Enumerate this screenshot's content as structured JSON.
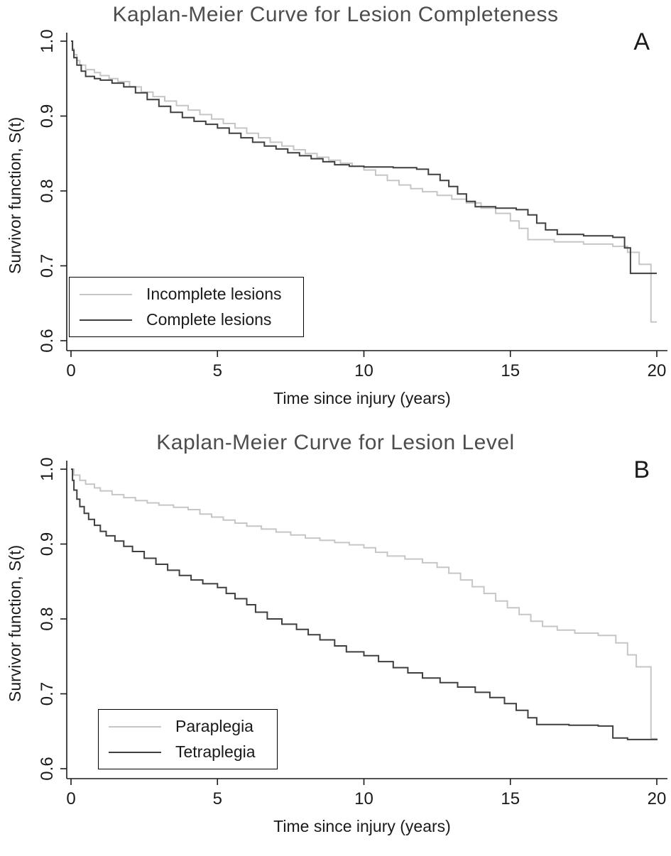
{
  "figure": {
    "background": "#ffffff",
    "title_color": "#4d4d4d",
    "axis_color": "#1a1a1a"
  },
  "chart_data": [
    {
      "type": "line",
      "subtype": "kaplan-meier-step",
      "title": "Kaplan-Meier Curve for Lesion Completeness",
      "panel_label": "A",
      "xlabel": "Time since injury (years)",
      "ylabel": "Survivor function, S(t)",
      "xlim": [
        0,
        20
      ],
      "ylim": [
        0.6,
        1.0
      ],
      "xticks": [
        0,
        5,
        10,
        15,
        20
      ],
      "xtick_labels": [
        "0",
        "5",
        "10",
        "15",
        "20"
      ],
      "yticks": [
        0.6,
        0.7,
        0.8,
        0.9,
        1.0
      ],
      "ytick_labels": [
        "0.6",
        "0.7",
        "0.8",
        "0.9",
        "1.0"
      ],
      "grid": false,
      "legend": {
        "position": "lower-left",
        "border": true
      },
      "axis_color": "#1a1a1a",
      "series": [
        {
          "name": "Incomplete lesions",
          "color": "#c6c6c6",
          "points": [
            [
              0,
              1.0
            ],
            [
              0.05,
              0.99
            ],
            [
              0.1,
              0.982
            ],
            [
              0.2,
              0.974
            ],
            [
              0.3,
              0.968
            ],
            [
              0.5,
              0.962
            ],
            [
              0.8,
              0.958
            ],
            [
              1.0,
              0.954
            ],
            [
              1.3,
              0.95
            ],
            [
              1.6,
              0.946
            ],
            [
              2.0,
              0.939
            ],
            [
              2.4,
              0.932
            ],
            [
              2.8,
              0.926
            ],
            [
              3.2,
              0.92
            ],
            [
              3.6,
              0.914
            ],
            [
              4.0,
              0.908
            ],
            [
              4.4,
              0.902
            ],
            [
              4.8,
              0.896
            ],
            [
              5.2,
              0.89
            ],
            [
              5.6,
              0.884
            ],
            [
              6.0,
              0.877
            ],
            [
              6.4,
              0.871
            ],
            [
              6.8,
              0.865
            ],
            [
              7.2,
              0.86
            ],
            [
              7.6,
              0.855
            ],
            [
              8.0,
              0.85
            ],
            [
              8.4,
              0.845
            ],
            [
              8.8,
              0.841
            ],
            [
              9.2,
              0.837
            ],
            [
              9.6,
              0.833
            ],
            [
              10.0,
              0.828
            ],
            [
              10.4,
              0.821
            ],
            [
              10.8,
              0.814
            ],
            [
              11.2,
              0.808
            ],
            [
              11.6,
              0.803
            ],
            [
              12.0,
              0.799
            ],
            [
              12.5,
              0.794
            ],
            [
              13.0,
              0.789
            ],
            [
              13.5,
              0.784
            ],
            [
              14.0,
              0.777
            ],
            [
              14.5,
              0.77
            ],
            [
              15.0,
              0.76
            ],
            [
              15.3,
              0.75
            ],
            [
              15.6,
              0.735
            ],
            [
              16.5,
              0.732
            ],
            [
              17.5,
              0.729
            ],
            [
              18.5,
              0.726
            ],
            [
              19.0,
              0.718
            ],
            [
              19.4,
              0.702
            ],
            [
              19.8,
              0.625
            ],
            [
              20,
              0.625
            ]
          ]
        },
        {
          "name": "Complete lesions",
          "color": "#3f3f3f",
          "points": [
            [
              0,
              1.0
            ],
            [
              0.05,
              0.988
            ],
            [
              0.1,
              0.978
            ],
            [
              0.2,
              0.968
            ],
            [
              0.35,
              0.96
            ],
            [
              0.5,
              0.953
            ],
            [
              0.8,
              0.95
            ],
            [
              1.0,
              0.948
            ],
            [
              1.4,
              0.944
            ],
            [
              1.8,
              0.939
            ],
            [
              2.2,
              0.931
            ],
            [
              2.6,
              0.922
            ],
            [
              3.0,
              0.913
            ],
            [
              3.4,
              0.905
            ],
            [
              3.8,
              0.898
            ],
            [
              4.2,
              0.893
            ],
            [
              4.6,
              0.889
            ],
            [
              5.0,
              0.884
            ],
            [
              5.4,
              0.877
            ],
            [
              5.8,
              0.871
            ],
            [
              6.2,
              0.865
            ],
            [
              6.6,
              0.86
            ],
            [
              7.0,
              0.856
            ],
            [
              7.4,
              0.851
            ],
            [
              7.8,
              0.847
            ],
            [
              8.2,
              0.843
            ],
            [
              8.6,
              0.839
            ],
            [
              9.0,
              0.835
            ],
            [
              9.5,
              0.833
            ],
            [
              10.0,
              0.832
            ],
            [
              11.0,
              0.831
            ],
            [
              11.8,
              0.829
            ],
            [
              12.2,
              0.822
            ],
            [
              12.6,
              0.814
            ],
            [
              12.9,
              0.806
            ],
            [
              13.2,
              0.796
            ],
            [
              13.5,
              0.786
            ],
            [
              13.8,
              0.779
            ],
            [
              14.5,
              0.777
            ],
            [
              15.2,
              0.775
            ],
            [
              15.6,
              0.768
            ],
            [
              15.9,
              0.757
            ],
            [
              16.2,
              0.748
            ],
            [
              16.6,
              0.742
            ],
            [
              17.5,
              0.74
            ],
            [
              18.5,
              0.738
            ],
            [
              18.9,
              0.724
            ],
            [
              19.1,
              0.69
            ],
            [
              20,
              0.69
            ]
          ]
        }
      ]
    },
    {
      "type": "line",
      "subtype": "kaplan-meier-step",
      "title": "Kaplan-Meier Curve for Lesion Level",
      "panel_label": "B",
      "xlabel": "Time since injury (years)",
      "ylabel": "Survivor function, S(t)",
      "xlim": [
        0,
        20
      ],
      "ylim": [
        0.6,
        1.0
      ],
      "xticks": [
        0,
        5,
        10,
        15,
        20
      ],
      "xtick_labels": [
        "0",
        "5",
        "10",
        "15",
        "20"
      ],
      "yticks": [
        0.6,
        0.7,
        0.8,
        0.9,
        1.0
      ],
      "ytick_labels": [
        "0.6",
        "0.7",
        "0.8",
        "0.9",
        "1.0"
      ],
      "grid": false,
      "legend": {
        "position": "lower-left",
        "border": true
      },
      "axis_color": "#1a1a1a",
      "series": [
        {
          "name": "Paraplegia",
          "color": "#c6c6c6",
          "points": [
            [
              0,
              1.0
            ],
            [
              0.1,
              0.992
            ],
            [
              0.3,
              0.985
            ],
            [
              0.5,
              0.98
            ],
            [
              0.8,
              0.975
            ],
            [
              1.0,
              0.971
            ],
            [
              1.4,
              0.966
            ],
            [
              1.8,
              0.962
            ],
            [
              2.2,
              0.958
            ],
            [
              2.6,
              0.955
            ],
            [
              3.0,
              0.952
            ],
            [
              3.5,
              0.949
            ],
            [
              4.0,
              0.946
            ],
            [
              4.4,
              0.94
            ],
            [
              4.8,
              0.936
            ],
            [
              5.2,
              0.932
            ],
            [
              5.6,
              0.928
            ],
            [
              6.0,
              0.924
            ],
            [
              6.5,
              0.92
            ],
            [
              7.0,
              0.916
            ],
            [
              7.5,
              0.912
            ],
            [
              8.0,
              0.908
            ],
            [
              8.5,
              0.905
            ],
            [
              9.0,
              0.902
            ],
            [
              9.5,
              0.899
            ],
            [
              10.0,
              0.895
            ],
            [
              10.4,
              0.889
            ],
            [
              10.8,
              0.884
            ],
            [
              11.4,
              0.88
            ],
            [
              12.0,
              0.875
            ],
            [
              12.5,
              0.869
            ],
            [
              12.9,
              0.861
            ],
            [
              13.3,
              0.852
            ],
            [
              13.7,
              0.843
            ],
            [
              14.1,
              0.834
            ],
            [
              14.5,
              0.824
            ],
            [
              14.9,
              0.815
            ],
            [
              15.3,
              0.806
            ],
            [
              15.7,
              0.797
            ],
            [
              16.1,
              0.79
            ],
            [
              16.6,
              0.785
            ],
            [
              17.2,
              0.781
            ],
            [
              18.0,
              0.778
            ],
            [
              18.6,
              0.768
            ],
            [
              19.0,
              0.752
            ],
            [
              19.3,
              0.736
            ],
            [
              19.8,
              0.64
            ],
            [
              20,
              0.638
            ]
          ]
        },
        {
          "name": "Tetraplegia",
          "color": "#3f3f3f",
          "points": [
            [
              0,
              1.0
            ],
            [
              0.05,
              0.985
            ],
            [
              0.1,
              0.972
            ],
            [
              0.2,
              0.96
            ],
            [
              0.3,
              0.95
            ],
            [
              0.45,
              0.941
            ],
            [
              0.6,
              0.933
            ],
            [
              0.8,
              0.925
            ],
            [
              1.0,
              0.917
            ],
            [
              1.2,
              0.911
            ],
            [
              1.5,
              0.904
            ],
            [
              1.8,
              0.897
            ],
            [
              2.1,
              0.89
            ],
            [
              2.5,
              0.881
            ],
            [
              2.9,
              0.873
            ],
            [
              3.3,
              0.865
            ],
            [
              3.7,
              0.858
            ],
            [
              4.1,
              0.852
            ],
            [
              4.5,
              0.847
            ],
            [
              5.0,
              0.842
            ],
            [
              5.3,
              0.834
            ],
            [
              5.6,
              0.827
            ],
            [
              6.0,
              0.819
            ],
            [
              6.3,
              0.809
            ],
            [
              6.7,
              0.8
            ],
            [
              7.2,
              0.793
            ],
            [
              7.7,
              0.786
            ],
            [
              8.1,
              0.779
            ],
            [
              8.5,
              0.772
            ],
            [
              9.0,
              0.764
            ],
            [
              9.4,
              0.756
            ],
            [
              10.0,
              0.751
            ],
            [
              10.5,
              0.743
            ],
            [
              11.0,
              0.735
            ],
            [
              11.5,
              0.728
            ],
            [
              12.0,
              0.721
            ],
            [
              12.6,
              0.715
            ],
            [
              13.2,
              0.709
            ],
            [
              13.8,
              0.702
            ],
            [
              14.3,
              0.695
            ],
            [
              14.8,
              0.687
            ],
            [
              15.2,
              0.678
            ],
            [
              15.6,
              0.668
            ],
            [
              15.9,
              0.659
            ],
            [
              17.0,
              0.658
            ],
            [
              18.0,
              0.657
            ],
            [
              18.5,
              0.641
            ],
            [
              19.0,
              0.639
            ],
            [
              20,
              0.638
            ]
          ]
        }
      ]
    }
  ]
}
